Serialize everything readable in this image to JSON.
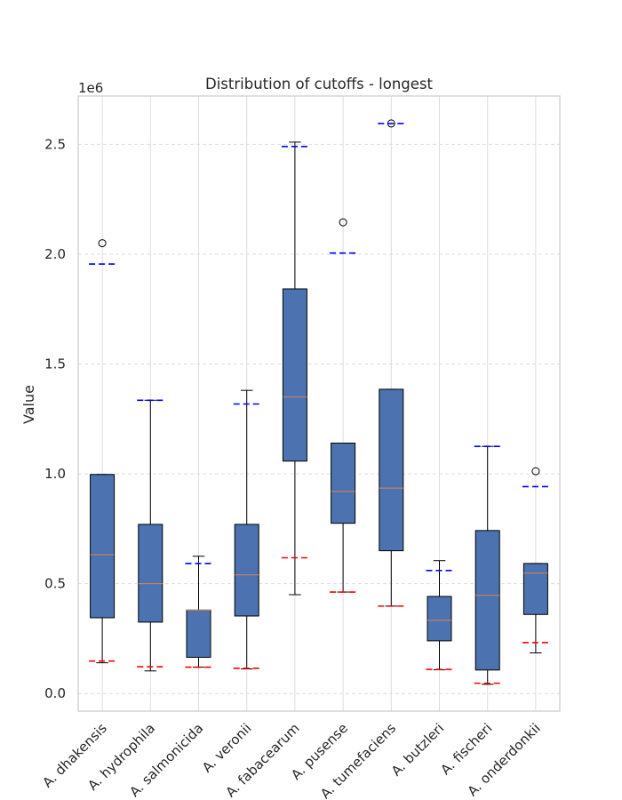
{
  "chart_data": {
    "type": "box",
    "title": "Distribution of cutoffs - longest",
    "xlabel": "",
    "ylabel": "Value",
    "y_multiplier": "1e6",
    "ylim": [
      -80000,
      2720000
    ],
    "yticks": [
      0,
      500000,
      1000000,
      1500000,
      2000000,
      2500000
    ],
    "ytick_labels": [
      "0.0",
      "0.5",
      "1.0",
      "1.5",
      "2.0",
      "2.5"
    ],
    "grid": "dashed",
    "colors": {
      "box_fill": "#4c72b0",
      "median": "#dd8452",
      "min_marker": "#ff0000",
      "max_marker": "#0000ff",
      "grid": "#dddddd",
      "frame": "#cccccc"
    },
    "categories": [
      "A. dhakensis",
      "A. hydrophila",
      "A. salmonicida",
      "A. veronii",
      "A. fabacearum",
      "A. pusense",
      "A. tumefaciens",
      "A. butzleri",
      "A. fischeri",
      "A. onderdonkii"
    ],
    "boxes": [
      {
        "q1": 345000,
        "median": 632000,
        "q3": 997000,
        "whisker_low": 140000,
        "whisker_high": 997000,
        "outliers": [
          2050000
        ],
        "min_marker": 148000,
        "max_marker": 1955000
      },
      {
        "q1": 325000,
        "median": 500000,
        "q3": 770000,
        "whisker_low": 103000,
        "whisker_high": 1335000,
        "outliers": [],
        "min_marker": 122000,
        "max_marker": 1335000
      },
      {
        "q1": 165000,
        "median": 380000,
        "q3": 380000,
        "whisker_low": 120000,
        "whisker_high": 625000,
        "outliers": [],
        "min_marker": 120000,
        "max_marker": 592000
      },
      {
        "q1": 353000,
        "median": 540000,
        "q3": 770000,
        "whisker_low": 112000,
        "whisker_high": 1380000,
        "outliers": [],
        "min_marker": 115000,
        "max_marker": 1318000
      },
      {
        "q1": 1058000,
        "median": 1350000,
        "q3": 1842000,
        "whisker_low": 450000,
        "whisker_high": 2510000,
        "outliers": [],
        "min_marker": 618000,
        "max_marker": 2490000
      },
      {
        "q1": 775000,
        "median": 920000,
        "q3": 1140000,
        "whisker_low": 462000,
        "whisker_high": 1140000,
        "outliers": [
          2145000
        ],
        "min_marker": 462000,
        "max_marker": 2005000
      },
      {
        "q1": 650000,
        "median": 935000,
        "q3": 1385000,
        "whisker_low": 398000,
        "whisker_high": 1385000,
        "outliers": [
          2595000
        ],
        "min_marker": 398000,
        "max_marker": 2595000
      },
      {
        "q1": 240000,
        "median": 333000,
        "q3": 442000,
        "whisker_low": 108000,
        "whisker_high": 605000,
        "outliers": [],
        "min_marker": 110000,
        "max_marker": 560000
      },
      {
        "q1": 107000,
        "median": 447000,
        "q3": 742000,
        "whisker_low": 42000,
        "whisker_high": 1125000,
        "outliers": [],
        "min_marker": 47000,
        "max_marker": 1125000
      },
      {
        "q1": 360000,
        "median": 548000,
        "q3": 592000,
        "whisker_low": 185000,
        "whisker_high": 592000,
        "outliers": [
          1012000
        ],
        "min_marker": 232000,
        "max_marker": 942000
      }
    ]
  }
}
